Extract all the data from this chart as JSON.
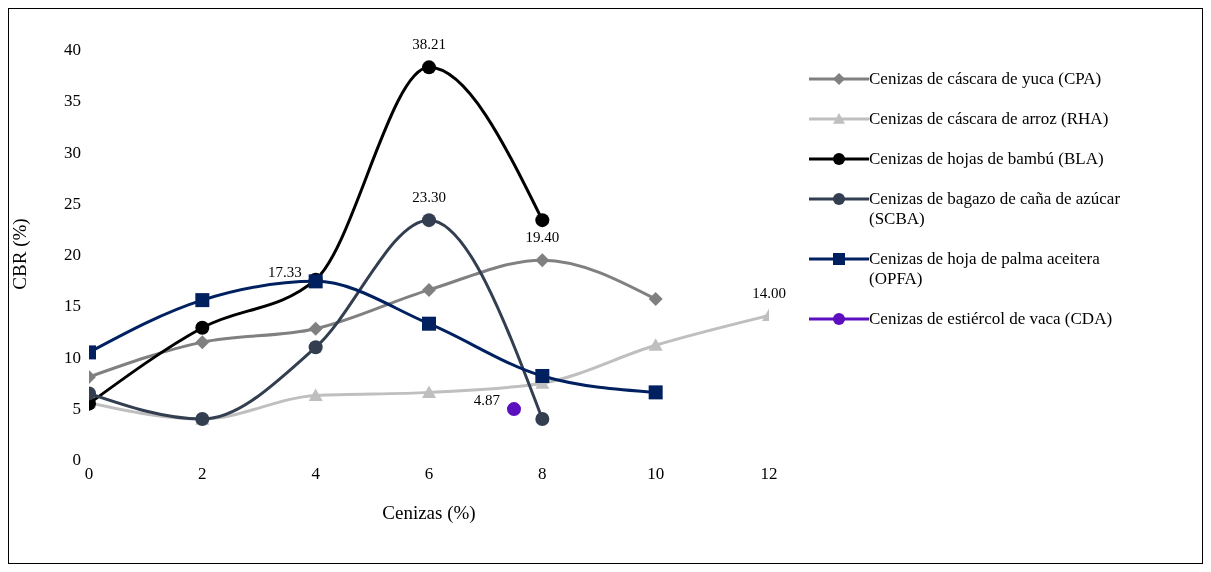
{
  "chart_data": {
    "type": "line",
    "xlabel": "Cenizas (%)",
    "ylabel": "CBR (%)",
    "xlim": [
      0,
      12
    ],
    "xticks": [
      0,
      2,
      4,
      6,
      8,
      10,
      12
    ],
    "ylim": [
      0,
      40
    ],
    "yticks": [
      0,
      5,
      10,
      15,
      20,
      25,
      30,
      35,
      40
    ],
    "grid": false,
    "legend": "right",
    "series": [
      {
        "name": "Cenizas de cáscara de yuca (CPA)",
        "color": "#808080",
        "marker": "diamond",
        "x": [
          0,
          2,
          4,
          6,
          8,
          10
        ],
        "values": [
          8.0,
          11.4,
          12.7,
          16.5,
          19.4,
          15.6
        ],
        "value_labels": [
          null,
          null,
          null,
          null,
          "19.40",
          null
        ]
      },
      {
        "name": "Cenizas de cáscara de arroz (RHA)",
        "color": "#bfbfbf",
        "marker": "triangle",
        "x": [
          0,
          2,
          4,
          6,
          8,
          10,
          12
        ],
        "values": [
          5.5,
          3.9,
          6.2,
          6.5,
          7.4,
          11.1,
          14.0
        ],
        "value_labels": [
          null,
          null,
          null,
          null,
          null,
          null,
          "14.00"
        ]
      },
      {
        "name": "Cenizas de hojas de bambú (BLA)",
        "color": "#000000",
        "marker": "circle",
        "x": [
          0,
          2,
          4,
          6,
          8
        ],
        "values": [
          5.4,
          12.8,
          17.5,
          38.21,
          23.3
        ],
        "value_labels": [
          null,
          null,
          null,
          "38.21",
          null
        ]
      },
      {
        "name": "Cenizas de bagazo de caña de azúcar (SCBA)",
        "color": "#333f50",
        "marker": "circle",
        "x": [
          0,
          2,
          4,
          6,
          8
        ],
        "values": [
          6.4,
          3.9,
          10.9,
          23.3,
          3.9
        ],
        "value_labels": [
          null,
          null,
          null,
          "23.30",
          null
        ]
      },
      {
        "name": "Cenizas de hoja de palma aceitera (OPFA)",
        "color": "#002060",
        "marker": "square",
        "x": [
          0,
          2,
          4,
          6,
          8,
          10
        ],
        "values": [
          10.4,
          15.5,
          17.33,
          13.2,
          8.1,
          6.5
        ],
        "value_labels": [
          null,
          null,
          "17.33",
          null,
          null,
          null
        ]
      },
      {
        "name": "Cenizas de estiércol de vaca (CDA)",
        "color": "#5b0fbf",
        "marker": "circle",
        "x": [
          7.5
        ],
        "values": [
          4.87
        ],
        "value_labels": [
          "4.87"
        ]
      }
    ]
  }
}
